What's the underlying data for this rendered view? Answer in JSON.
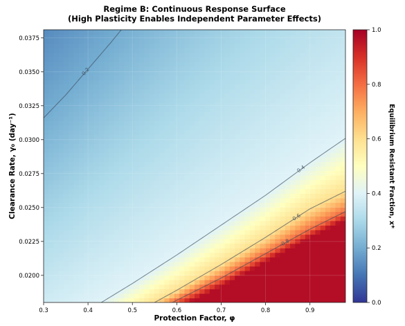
{
  "chart_data": {
    "type": "heatmap",
    "title": "Regime B: Continuous Response Surface",
    "subtitle": "(High Plasticity Enables Independent Parameter Effects)",
    "xlabel": "Protection Factor, φ",
    "ylabel": "Clearance Rate, γ₀ (day⁻¹)",
    "colorbar_label": "Equilibrium Resistant Fraction, x*",
    "colormap": "RdYlBu_r",
    "xlim": [
      0.3,
      0.98
    ],
    "ylim": [
      0.018,
      0.0381
    ],
    "clim": [
      0.0,
      1.0
    ],
    "x_ticks": [
      "0.3",
      "0.4",
      "0.5",
      "0.6",
      "0.7",
      "0.8",
      "0.9"
    ],
    "y_ticks": [
      "0.0200",
      "0.0225",
      "0.0250",
      "0.0275",
      "0.0300",
      "0.0325",
      "0.0350",
      "0.0375"
    ],
    "colorbar_ticks": [
      "0.0",
      "0.2",
      "0.4",
      "0.6",
      "0.8",
      "1.0"
    ],
    "contours": [
      {
        "level": 0.2,
        "label": "0.2",
        "points": [
          [
            0.3,
            0.0316
          ],
          [
            0.35,
            0.0333
          ],
          [
            0.4,
            0.0352
          ],
          [
            0.45,
            0.0371
          ],
          [
            0.475,
            0.0381
          ]
        ]
      },
      {
        "level": 0.4,
        "label": "0.4",
        "points": [
          [
            0.43,
            0.018
          ],
          [
            0.5,
            0.0194
          ],
          [
            0.6,
            0.0215
          ],
          [
            0.7,
            0.0237
          ],
          [
            0.8,
            0.0259
          ],
          [
            0.9,
            0.0283
          ],
          [
            0.98,
            0.0301
          ]
        ]
      },
      {
        "level": 0.6,
        "label": "0.6",
        "points": [
          [
            0.55,
            0.018
          ],
          [
            0.6,
            0.0189
          ],
          [
            0.7,
            0.0208
          ],
          [
            0.8,
            0.0228
          ],
          [
            0.9,
            0.0249
          ],
          [
            0.98,
            0.0262
          ]
        ]
      },
      {
        "level": 0.8,
        "label": "0.8",
        "points": [
          [
            0.59,
            0.018
          ],
          [
            0.7,
            0.0198
          ],
          [
            0.8,
            0.0216
          ],
          [
            0.9,
            0.0234
          ],
          [
            0.98,
            0.0247
          ]
        ]
      }
    ]
  }
}
